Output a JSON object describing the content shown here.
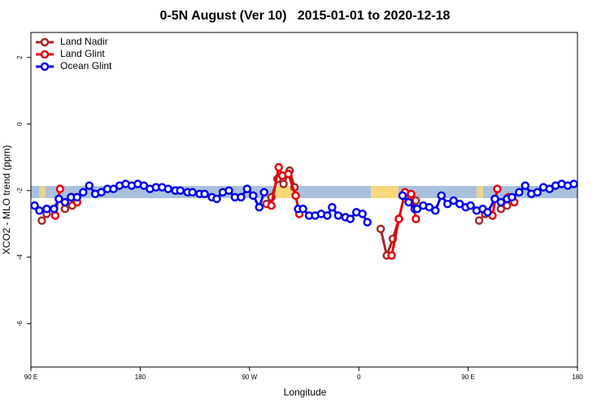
{
  "chart_data": {
    "type": "line",
    "title": "0-5N August (Ver 10)   2015-01-01 to 2020-12-18",
    "x_label": "Longitude",
    "y_label": "XCO2 - MLO trend (ppm)",
    "xlim": [
      90,
      540
    ],
    "ylim": [
      -7.3,
      2.75
    ],
    "xticks": [
      {
        "value": 90,
        "label": "90 E"
      },
      {
        "value": 180,
        "label": "180"
      },
      {
        "value": 270,
        "label": "90 W"
      },
      {
        "value": 360,
        "label": "0"
      },
      {
        "value": 450,
        "label": "90 E"
      },
      {
        "value": 540,
        "label": "180"
      }
    ],
    "yticks": [
      2,
      0,
      -2,
      -4,
      -6
    ],
    "legend": "top-left",
    "series": [
      {
        "name": "Land Nadir",
        "color": "#a52a2a",
        "x": [
          99,
          103,
          null,
          118,
          124,
          null,
          284,
          288,
          293,
          298,
          303,
          307,
          null,
          378,
          383,
          388,
          393,
          null,
          403,
          407,
          null,
          459,
          464,
          null,
          477,
          482
        ],
        "values": [
          -2.9,
          -2.7,
          null,
          -2.55,
          -2.45,
          null,
          -2.4,
          -2.2,
          -1.65,
          -1.8,
          -1.4,
          -1.9,
          null,
          -3.15,
          -3.95,
          -3.45,
          -2.85,
          null,
          -2.2,
          -2.3,
          null,
          -2.9,
          -2.7,
          null,
          -2.55,
          -2.45
        ]
      },
      {
        "name": "Land Glint",
        "color": "#e8000b",
        "x": [
          110,
          114,
          null,
          124,
          128,
          null,
          288,
          294,
          297,
          302,
          308,
          311,
          null,
          387,
          393,
          398,
          403,
          407,
          null,
          470,
          474,
          null,
          483,
          488
        ],
        "values": [
          -2.75,
          -1.95,
          null,
          -2.2,
          -2.35,
          null,
          -2.45,
          -1.3,
          -1.55,
          -1.5,
          -2.15,
          -2.7,
          null,
          -3.95,
          -2.85,
          -2.05,
          -2.1,
          -2.85,
          null,
          -2.75,
          -1.95,
          null,
          -2.2,
          -2.35
        ]
      },
      {
        "name": "Ocean Glint",
        "color": "#0000ee",
        "x": [
          93,
          97,
          103,
          109,
          113,
          118,
          123,
          128,
          133,
          138,
          143,
          148,
          153,
          158,
          163,
          168,
          173,
          178,
          183,
          188,
          193,
          198,
          203,
          209,
          213,
          219,
          223,
          229,
          233,
          239,
          243,
          248,
          253,
          258,
          263,
          268,
          273,
          278,
          282,
          null,
          310,
          314,
          319,
          324,
          329,
          334,
          338,
          343,
          349,
          353,
          358,
          363,
          367,
          null,
          396,
          401,
          406,
          408,
          413,
          418,
          423,
          428,
          433,
          438,
          443,
          448,
          452,
          457,
          462,
          466,
          472,
          477,
          482,
          486,
          492,
          497,
          502,
          507,
          512,
          517,
          522,
          527,
          532,
          537
        ],
        "values": [
          -2.45,
          -2.6,
          -2.55,
          -2.55,
          -2.25,
          -2.35,
          -2.2,
          -2.2,
          -2.05,
          -1.85,
          -2.1,
          -2.05,
          -1.95,
          -1.95,
          -1.85,
          -1.8,
          -1.85,
          -1.8,
          -1.85,
          -1.95,
          -1.9,
          -1.9,
          -1.95,
          -2.0,
          -2.0,
          -2.05,
          -2.05,
          -2.1,
          -2.1,
          -2.2,
          -2.25,
          -2.05,
          -2.0,
          -2.2,
          -2.2,
          -1.95,
          -2.15,
          -2.5,
          -2.05,
          null,
          -2.55,
          -2.55,
          -2.75,
          -2.75,
          -2.7,
          -2.75,
          -2.5,
          -2.75,
          -2.8,
          -2.85,
          -2.65,
          -2.7,
          -2.95,
          null,
          -2.15,
          -2.35,
          -2.55,
          -2.55,
          -2.45,
          -2.5,
          -2.6,
          -2.15,
          -2.4,
          -2.3,
          -2.4,
          -2.5,
          -2.45,
          -2.6,
          -2.55,
          -2.65,
          -2.25,
          -2.35,
          -2.25,
          -2.2,
          -2.05,
          -1.85,
          -2.1,
          -2.05,
          -1.9,
          -1.95,
          -1.85,
          -1.8,
          -1.85,
          -1.8
        ]
      }
    ]
  }
}
